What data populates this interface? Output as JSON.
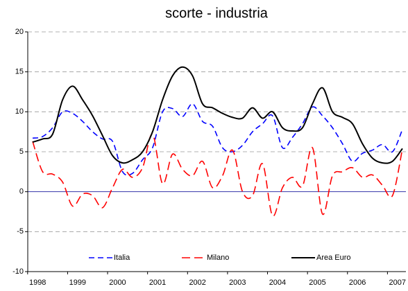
{
  "chart_data": {
    "type": "line",
    "title": "scorte - industria",
    "categories": [
      "1998",
      null,
      null,
      null,
      "1999",
      null,
      null,
      null,
      "2000",
      null,
      null,
      null,
      "2001",
      null,
      null,
      null,
      "2002",
      null,
      null,
      null,
      "2003",
      null,
      null,
      null,
      "2004",
      null,
      null,
      null,
      "2005",
      null,
      null,
      null,
      "2006",
      null,
      null,
      null,
      "2007",
      null
    ],
    "series": [
      {
        "name": "Italia",
        "color": "#0000ff",
        "dash": "8,5",
        "values": [
          6.7,
          6.9,
          8.0,
          10.0,
          9.8,
          8.8,
          7.5,
          6.6,
          6.3,
          2.5,
          2.3,
          4.0,
          5.5,
          10.0,
          10.4,
          9.4,
          11.0,
          8.8,
          8.2,
          5.5,
          5.0,
          5.8,
          7.5,
          8.5,
          9.5,
          5.5,
          6.8,
          8.5,
          10.6,
          9.5,
          8.0,
          6.0,
          3.8,
          4.8,
          5.2,
          5.9,
          5.0,
          7.8
        ]
      },
      {
        "name": "Milano",
        "color": "#ff0000",
        "dash": "12,6",
        "values": [
          6.3,
          2.5,
          2.2,
          1.2,
          -1.8,
          -0.3,
          -0.5,
          -2.0,
          0.5,
          2.8,
          1.8,
          3.0,
          7.2,
          1.0,
          4.7,
          2.8,
          2.0,
          3.8,
          0.5,
          2.0,
          5.2,
          0.0,
          -0.5,
          3.5,
          -3.0,
          0.5,
          1.8,
          0.7,
          5.5,
          -2.8,
          2.0,
          2.5,
          3.0,
          1.8,
          2.1,
          0.8,
          -0.5,
          5.4
        ]
      },
      {
        "name": "Area Euro",
        "color": "#000000",
        "dash": "none",
        "values": [
          6.2,
          6.6,
          7.2,
          11.5,
          13.2,
          11.5,
          9.5,
          7.0,
          4.5,
          3.6,
          4.0,
          5.0,
          7.5,
          11.5,
          14.5,
          15.6,
          14.5,
          11.0,
          10.5,
          9.8,
          9.3,
          9.2,
          10.5,
          9.2,
          10.0,
          8.0,
          7.6,
          8.0,
          11.0,
          13.0,
          10.0,
          9.3,
          8.5,
          6.0,
          4.2,
          3.6,
          3.8,
          5.4
        ]
      }
    ],
    "ylim": [
      -10,
      20
    ],
    "yticks": [
      -10,
      -5,
      0,
      5,
      10,
      15,
      20
    ],
    "grid": true,
    "legend": "bottom"
  }
}
